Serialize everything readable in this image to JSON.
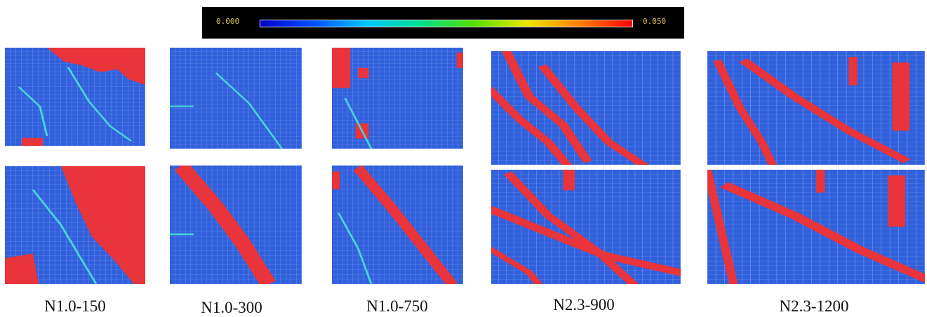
{
  "colorbar": {
    "min_label": "0.000",
    "max_label": "0.050"
  },
  "panels": [
    {
      "label": "N1.0-150"
    },
    {
      "label": "N1.0-300"
    },
    {
      "label": "N1.0-750"
    },
    {
      "label": "N2.3-900"
    },
    {
      "label": "N2.3-1200"
    }
  ]
}
